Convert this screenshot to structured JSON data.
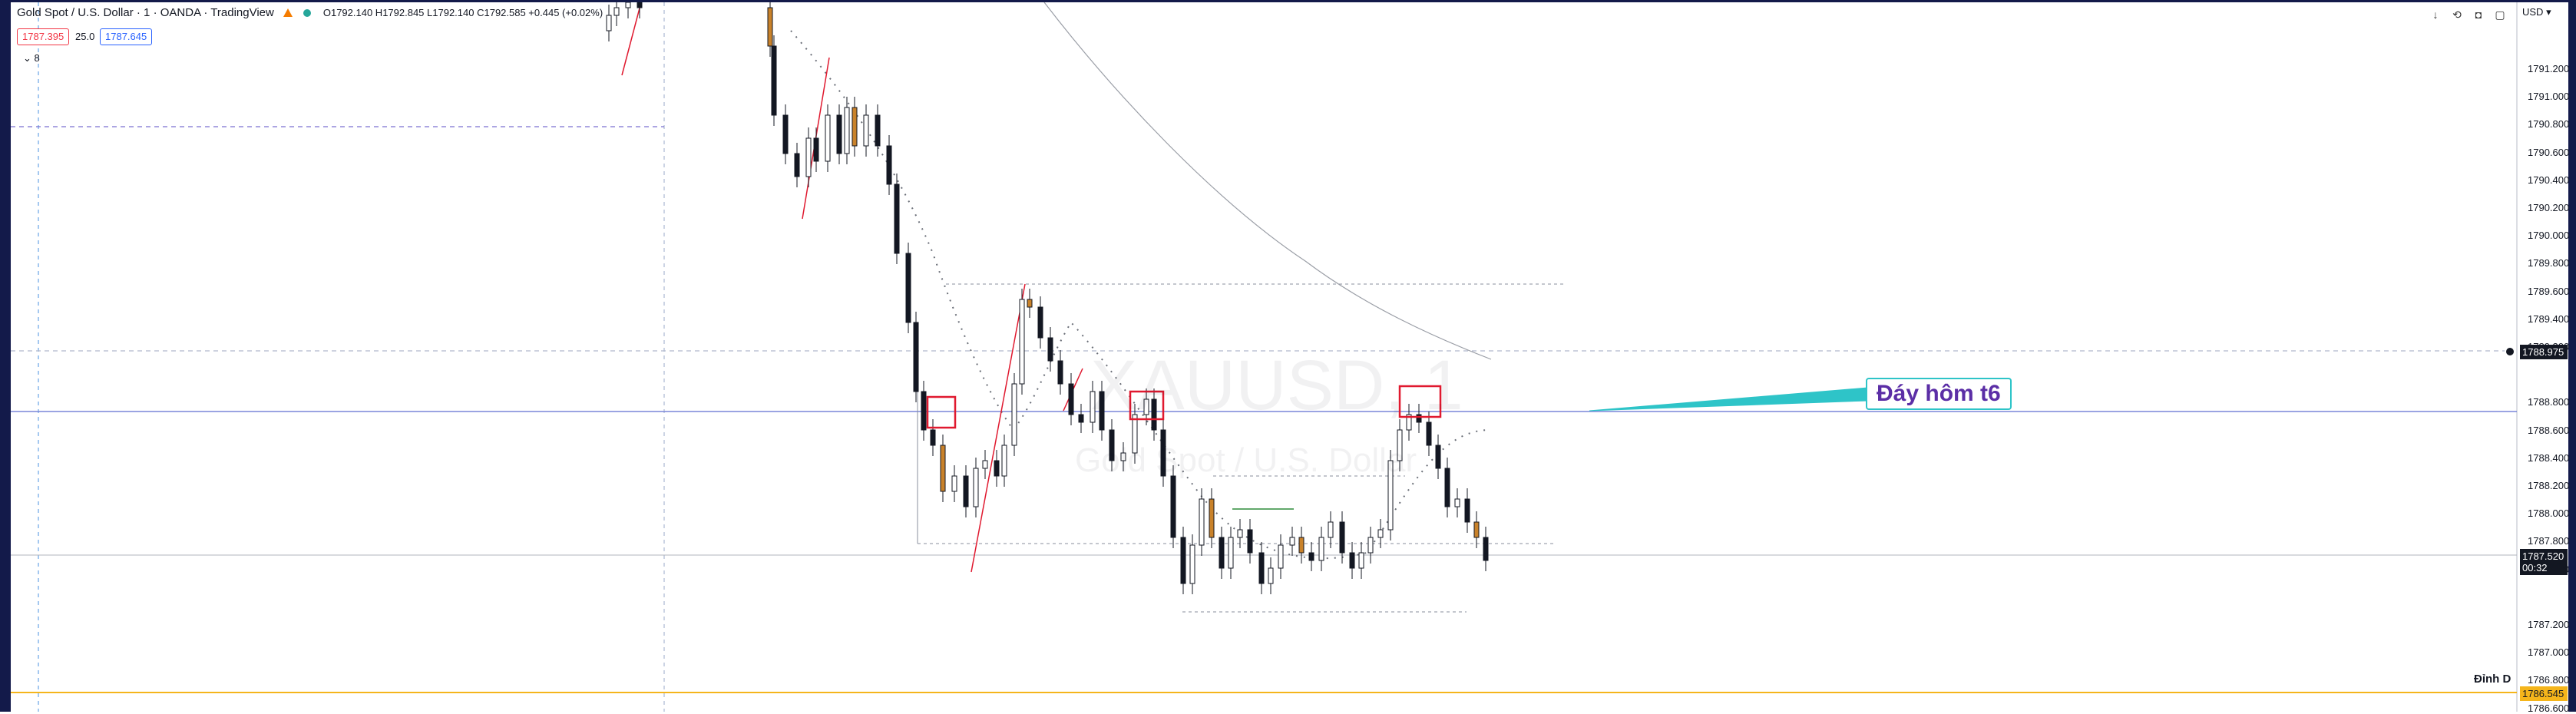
{
  "header": {
    "title": "Gold Spot / U.S. Dollar · 1 · OANDA · TradingView",
    "market_status_color": "#26a69a",
    "warning_color": "#f57c00",
    "ohlc": "O1792.140 H1792.845 L1792.140 C1792.585 +0.445 (+0.02%)"
  },
  "quote": {
    "sell_price": "1787.395",
    "spread": "25.0",
    "buy_price": "1787.645",
    "sell_color": "#f23645",
    "buy_color": "#2962ff",
    "collapse_label": "8"
  },
  "toolbar": {
    "currency": "USD",
    "icons": [
      "arrow-down-icon",
      "undo-icon",
      "camera-icon",
      "fullscreen-icon"
    ]
  },
  "watermark": {
    "symbol": "XAUUSD, 1",
    "name": "Gold Spot / U.S. Dollar"
  },
  "price_axis": {
    "labels": [
      "1791.200",
      "1791.000",
      "1790.800",
      "1790.600",
      "1790.400",
      "1790.200",
      "1790.000",
      "1789.800",
      "1789.600",
      "1789.400",
      "1789.200",
      "1788.800",
      "1788.600",
      "1788.400",
      "1788.200",
      "1788.000",
      "1787.800",
      "1787.600",
      "1787.200",
      "1787.000",
      "1786.800",
      "1786.600"
    ],
    "badges": {
      "horizontal_line_price": "1788.975",
      "last_price": "1787.520",
      "countdown": "00:32",
      "yellow_line_price": "1786.545"
    },
    "badge_colors": {
      "last_price": "#131722",
      "yellow_line": "#f5b51b"
    }
  },
  "annotations": {
    "callout_text": "Đáy hôm t6",
    "callout_border": "#2ec4c8",
    "callout_text_color": "#5b2ea6",
    "dinh_label": "Đỉnh D",
    "box_color": "#e0192f"
  }
}
